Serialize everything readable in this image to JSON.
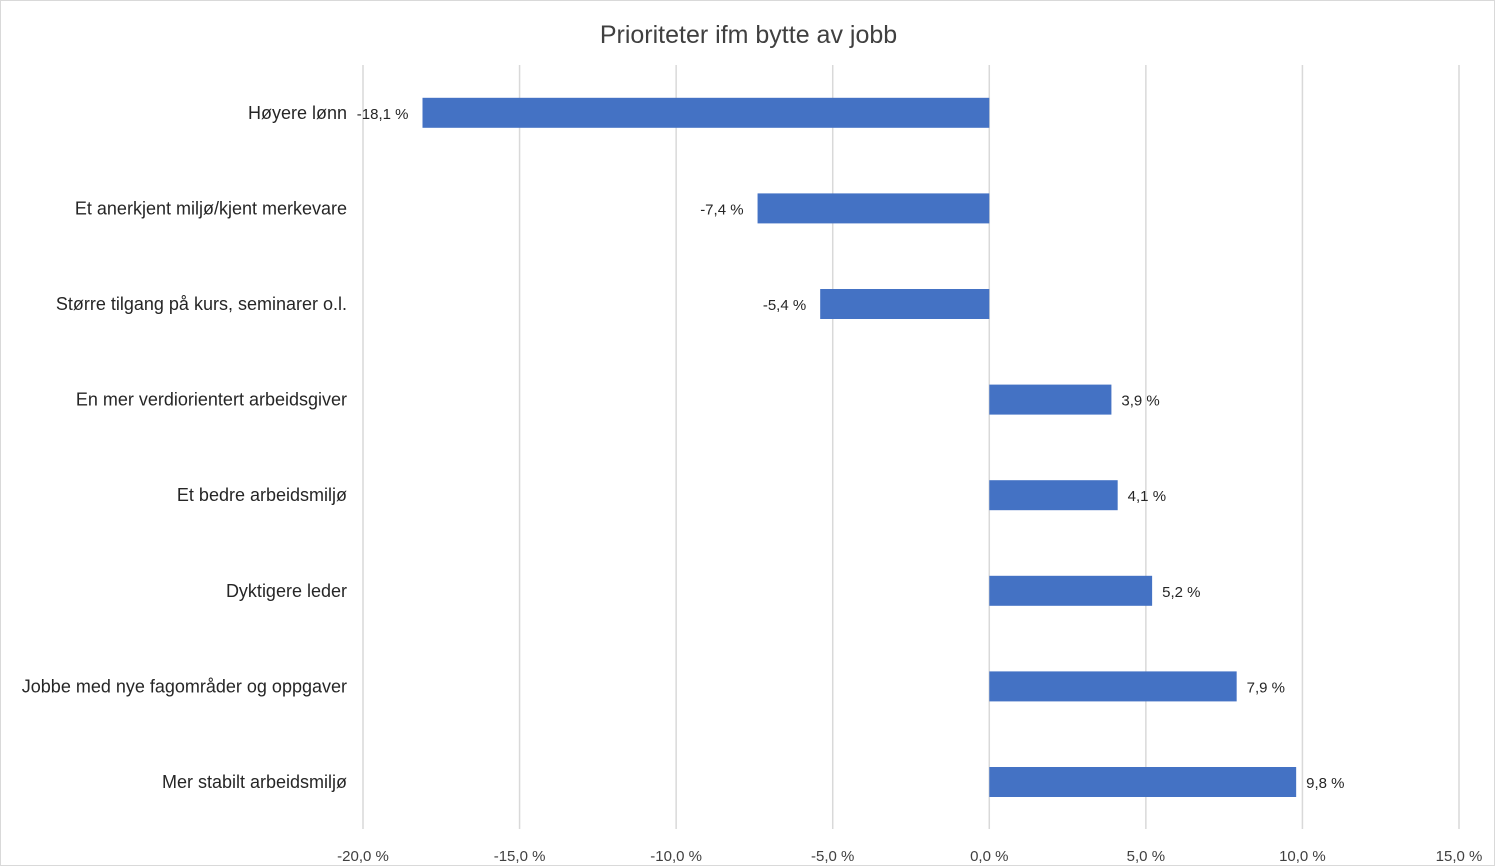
{
  "chart_data": {
    "type": "bar",
    "orientation": "horizontal",
    "title": "Prioriteter ifm bytte av jobb",
    "categories": [
      "Høyere lønn",
      "Et anerkjent miljø/kjent merkevare",
      "Større tilgang på kurs, seminarer o.l.",
      "En mer verdiorientert arbeidsgiver",
      "Et bedre arbeidsmiljø",
      "Dyktigere leder",
      "Jobbe med nye fagområder og oppgaver",
      "Mer stabilt arbeidsmiljø"
    ],
    "values": [
      -18.1,
      -7.4,
      -5.4,
      3.9,
      4.1,
      5.2,
      7.9,
      9.8
    ],
    "data_labels": [
      "-18,1 %",
      "-7,4 %",
      "-5,4 %",
      "3,9 %",
      "4,1 %",
      "5,2 %",
      "7,9 %",
      "9,8 %"
    ],
    "xlim": [
      -20,
      15
    ],
    "x_ticks": [
      -20,
      -15,
      -10,
      -5,
      0,
      5,
      10,
      15
    ],
    "x_tick_labels": [
      "-20,0 %",
      "-15,0 %",
      "-10,0 %",
      "-5,0 %",
      "0,0 %",
      "5,0 %",
      "10,0 %",
      "15,0 %"
    ],
    "xlabel": "",
    "ylabel": "",
    "grid": "vertical",
    "legend": "none",
    "bar_color": "#4472c4"
  }
}
